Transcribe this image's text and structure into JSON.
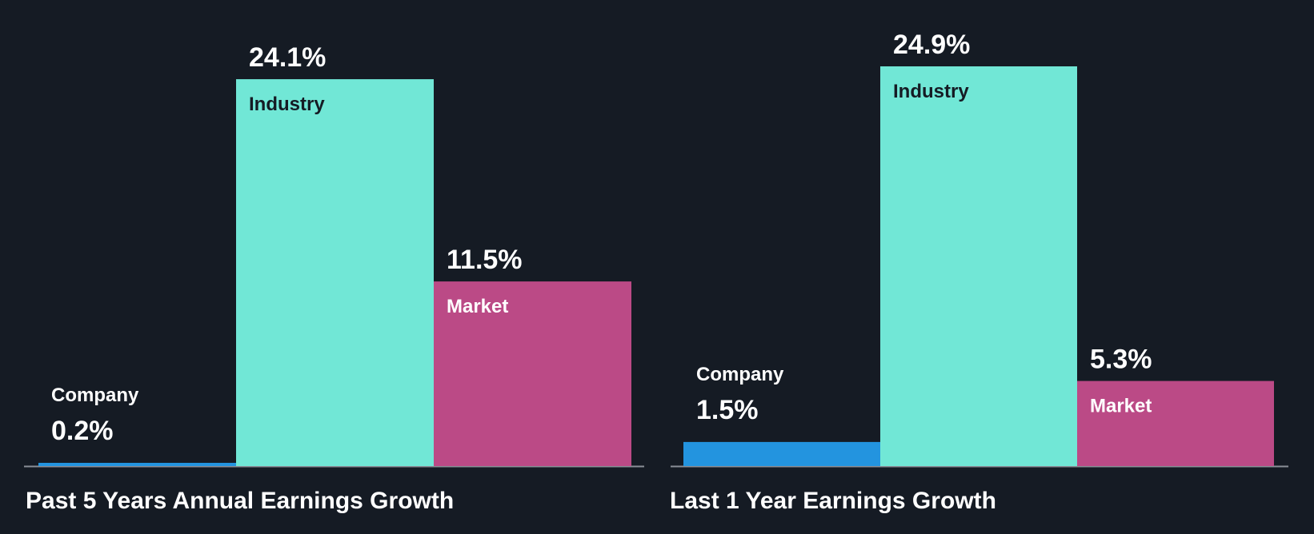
{
  "colors": {
    "background": "#151b24",
    "company": "#2394df",
    "industry": "#71e7d6",
    "market": "#bb4a86",
    "baseline": "#8a8f97",
    "value_text": "#ffffff",
    "industry_label_text": "#151b24",
    "label_text_light": "#ffffff"
  },
  "chart_data": [
    {
      "type": "bar",
      "title": "Past 5 Years Annual Earnings Growth",
      "categories": [
        "Company",
        "Industry",
        "Market"
      ],
      "values": [
        0.2,
        24.1,
        11.5
      ],
      "value_labels": [
        "0.2%",
        "24.1%",
        "11.5%"
      ],
      "unit": "%",
      "ylim": [
        0,
        24.9
      ],
      "grid": false,
      "legend": "none"
    },
    {
      "type": "bar",
      "title": "Last 1 Year Earnings Growth",
      "categories": [
        "Company",
        "Industry",
        "Market"
      ],
      "values": [
        1.5,
        24.9,
        5.3
      ],
      "value_labels": [
        "1.5%",
        "24.9%",
        "5.3%"
      ],
      "unit": "%",
      "ylim": [
        0,
        24.9
      ],
      "grid": false,
      "legend": "none"
    }
  ]
}
